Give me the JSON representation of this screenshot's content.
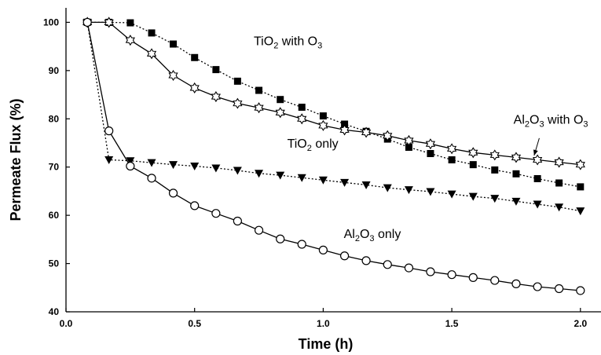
{
  "chart_data": {
    "type": "line",
    "title": "",
    "xlabel": "Time (h)",
    "ylabel": "Permeate Flux (%)",
    "xlim": [
      0.0,
      2.08
    ],
    "ylim": [
      40,
      103
    ],
    "x_ticks": [
      0.0,
      0.5,
      1.0,
      1.5,
      2.0
    ],
    "x_tick_labels": [
      "0.0",
      "0.5",
      "1.0",
      "1.5",
      "2.0"
    ],
    "y_ticks": [
      40,
      50,
      60,
      70,
      80,
      90,
      100
    ],
    "y_tick_labels": [
      "40",
      "50",
      "60",
      "70",
      "80",
      "90",
      "100"
    ],
    "grid": false,
    "legend": "none",
    "series": [
      {
        "name_parts": [
          "TiO",
          "2",
          " with O",
          "3"
        ],
        "marker": "filled-square",
        "line_style": "dotted",
        "color": "#000000",
        "x": [
          0.083,
          0.167,
          0.25,
          0.333,
          0.417,
          0.5,
          0.583,
          0.667,
          0.75,
          0.833,
          0.917,
          1.0,
          1.083,
          1.167,
          1.25,
          1.333,
          1.417,
          1.5,
          1.583,
          1.667,
          1.75,
          1.833,
          1.917,
          2.0
        ],
        "y": [
          100,
          100,
          99.9,
          97.8,
          95.5,
          92.7,
          90.2,
          87.8,
          85.9,
          84.0,
          82.4,
          80.6,
          78.9,
          77.4,
          75.8,
          74.1,
          72.8,
          71.5,
          70.5,
          69.4,
          68.6,
          67.6,
          66.7,
          65.9
        ]
      },
      {
        "name_parts": [
          "Al",
          "2",
          "O",
          "3",
          " with O",
          "3"
        ],
        "marker": "open-star",
        "line_style": "solid",
        "color": "#000000",
        "x": [
          0.083,
          0.167,
          0.25,
          0.333,
          0.417,
          0.5,
          0.583,
          0.667,
          0.75,
          0.833,
          0.917,
          1.0,
          1.083,
          1.167,
          1.25,
          1.333,
          1.417,
          1.5,
          1.583,
          1.667,
          1.75,
          1.833,
          1.917,
          2.0
        ],
        "y": [
          100,
          100,
          96.3,
          93.5,
          89.0,
          86.4,
          84.6,
          83.2,
          82.3,
          81.3,
          80.0,
          78.6,
          77.7,
          77.2,
          76.5,
          75.5,
          74.8,
          73.8,
          73.0,
          72.5,
          72.0,
          71.5,
          71.0,
          70.5
        ]
      },
      {
        "name_parts": [
          "TiO",
          "2",
          " only"
        ],
        "marker": "filled-triangle-down",
        "line_style": "dotted",
        "color": "#000000",
        "x": [
          0.083,
          0.167,
          0.25,
          0.333,
          0.417,
          0.5,
          0.583,
          0.667,
          0.75,
          0.833,
          0.917,
          1.0,
          1.083,
          1.167,
          1.25,
          1.333,
          1.417,
          1.5,
          1.583,
          1.667,
          1.75,
          1.833,
          1.917,
          2.0
        ],
        "y": [
          100,
          71.5,
          71.3,
          70.9,
          70.5,
          70.2,
          69.8,
          69.3,
          68.7,
          68.3,
          67.8,
          67.3,
          66.8,
          66.3,
          65.7,
          65.3,
          64.9,
          64.4,
          63.9,
          63.5,
          62.9,
          62.3,
          61.7,
          60.9
        ]
      },
      {
        "name_parts": [
          "Al",
          "2",
          "O",
          "3",
          " only"
        ],
        "marker": "open-circle",
        "line_style": "solid",
        "color": "#000000",
        "x": [
          0.083,
          0.167,
          0.25,
          0.333,
          0.417,
          0.5,
          0.583,
          0.667,
          0.75,
          0.833,
          0.917,
          1.0,
          1.083,
          1.167,
          1.25,
          1.333,
          1.417,
          1.5,
          1.583,
          1.667,
          1.75,
          1.833,
          1.917,
          2.0
        ],
        "y": [
          100,
          77.5,
          70.2,
          67.7,
          64.6,
          62.0,
          60.4,
          58.8,
          56.9,
          55.1,
          54.0,
          52.8,
          51.6,
          50.6,
          49.8,
          49.1,
          48.3,
          47.7,
          47.1,
          46.5,
          45.8,
          45.2,
          44.8,
          44.4
        ]
      }
    ],
    "annotations": [
      {
        "series_index": 0,
        "text_parts": [
          "TiO",
          "2",
          " with O",
          "3"
        ],
        "x": 0.73,
        "y": 95.3
      },
      {
        "series_index": 1,
        "text_parts": [
          "Al",
          "2",
          "O",
          "3",
          " with O",
          "3"
        ],
        "x": 1.74,
        "y": 79.0
      },
      {
        "series_index": 2,
        "text_parts": [
          "TiO",
          "2",
          " only"
        ],
        "x": 0.86,
        "y": 74.0
      },
      {
        "series_index": 3,
        "text_parts": [
          "Al",
          "2",
          "O",
          "3",
          " only"
        ],
        "x": 1.08,
        "y": 55.3
      }
    ],
    "pointer_arrow": {
      "from": [
        1.84,
        76.0
      ],
      "to": [
        1.82,
        72.4
      ]
    }
  }
}
